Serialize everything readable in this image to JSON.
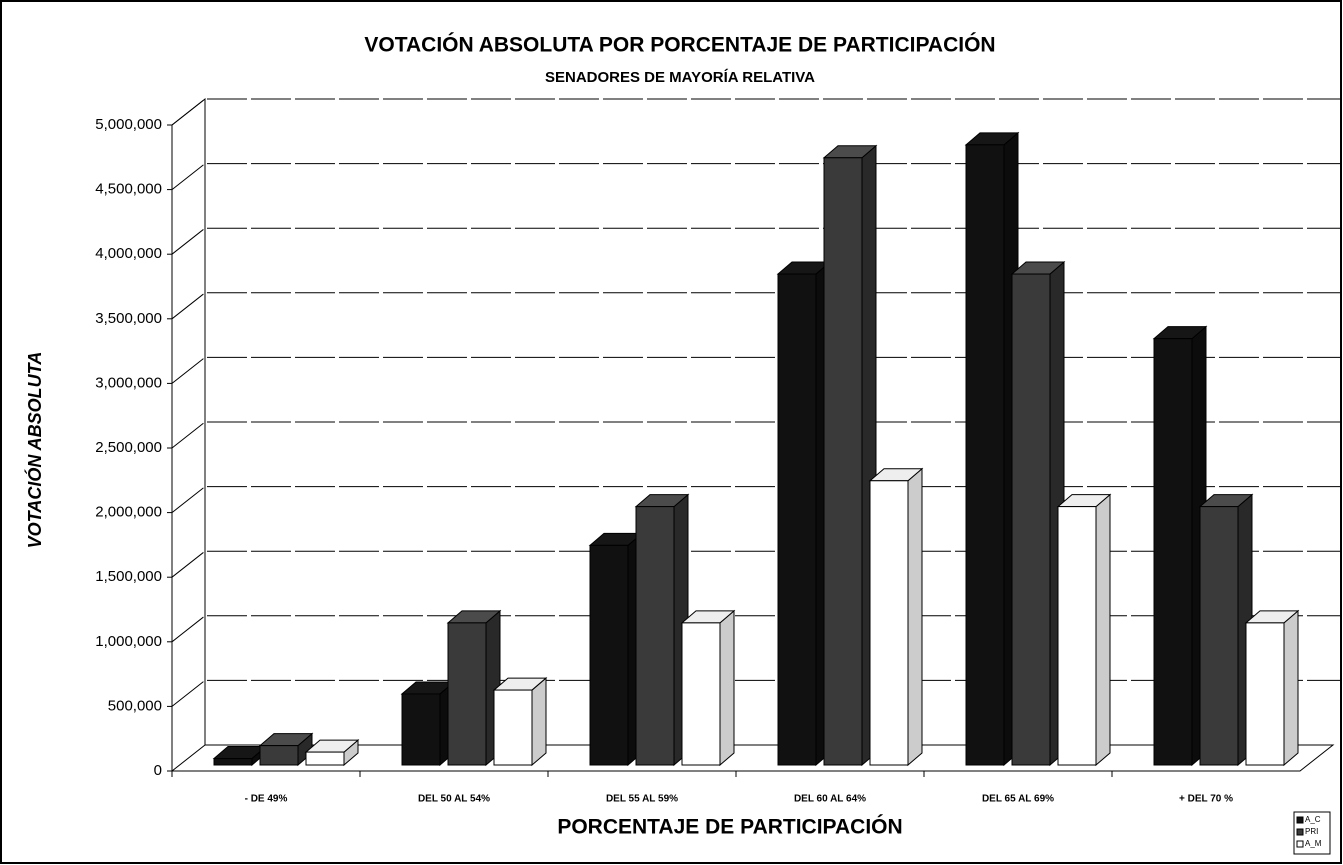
{
  "chart_data": {
    "type": "bar3d",
    "title": "VOTACIÓN ABSOLUTA POR PORCENTAJE DE PARTICIPACIÓN",
    "subtitle": "SENADORES DE MAYORÍA RELATIVA",
    "y_label": "VOTACIÓN ABSOLUTA",
    "x_label": "PORCENTAJE DE PARTICIPACIÓN",
    "categories": [
      "- DE 49%",
      "DEL 50 AL 54%",
      "DEL 55 AL 59%",
      "DEL 60 AL 64%",
      "DEL 65 AL 69%",
      "+ DEL 70 %"
    ],
    "series": [
      {
        "name": "A_C",
        "color": "#111111",
        "values": [
          50000,
          550000,
          1700000,
          3800000,
          4800000,
          3300000
        ]
      },
      {
        "name": "PRI",
        "color": "#3a3a3a",
        "values": [
          150000,
          1100000,
          2000000,
          4700000,
          3800000,
          2000000
        ]
      },
      {
        "name": "A_M",
        "color": "#ffffff",
        "values": [
          100000,
          580000,
          1100000,
          2200000,
          2000000,
          1100000
        ]
      }
    ],
    "ylim": [
      0,
      5000000
    ],
    "yticks": [
      {
        "value": 0,
        "label": "0"
      },
      {
        "value": 500000,
        "label": "500,000"
      },
      {
        "value": 1000000,
        "label": "1,000,000"
      },
      {
        "value": 1500000,
        "label": "1,500,000"
      },
      {
        "value": 2000000,
        "label": "2,000,000"
      },
      {
        "value": 2500000,
        "label": "2,500,000"
      },
      {
        "value": 3000000,
        "label": "3,000,000"
      },
      {
        "value": 3500000,
        "label": "3,500,000"
      },
      {
        "value": 4000000,
        "label": "4,000,000"
      },
      {
        "value": 4500000,
        "label": "4,500,000"
      },
      {
        "value": 5000000,
        "label": "5,000,000"
      }
    ],
    "grid": true,
    "legend": "bottom-right"
  }
}
